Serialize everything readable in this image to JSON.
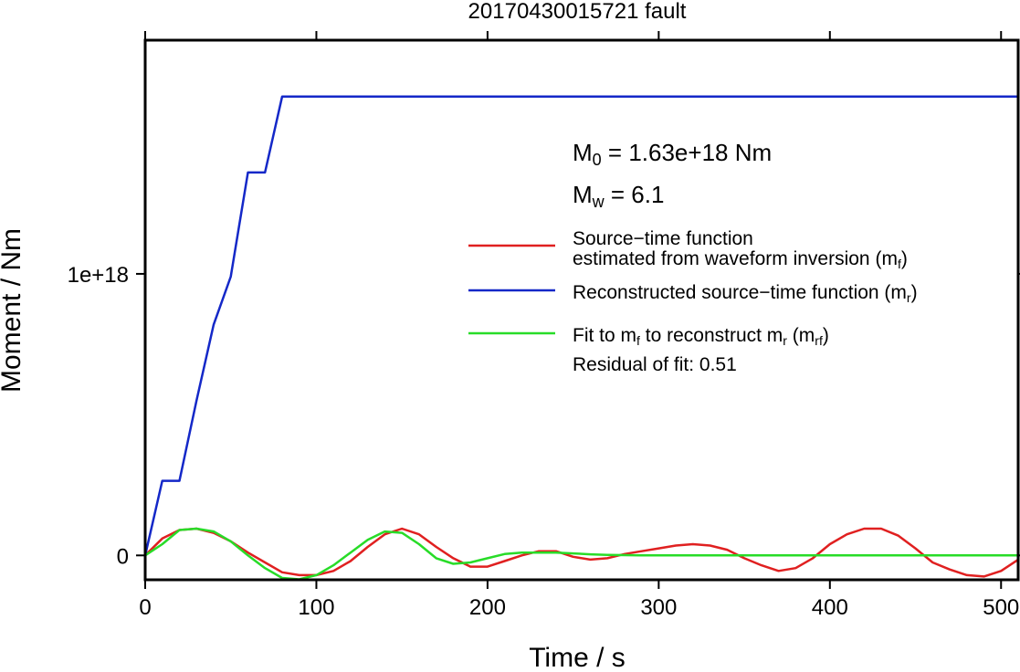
{
  "chart_data": {
    "type": "line",
    "title": "20170430015721 fault",
    "xlabel": "Time / s",
    "ylabel": "Moment / Nm",
    "xlim": [
      0,
      510
    ],
    "ylim": [
      -8.66e+16,
      1.83e+18
    ],
    "xticks": [
      0,
      100,
      200,
      300,
      400,
      500
    ],
    "xtick_labels": [
      "0",
      "100",
      "200",
      "300",
      "400",
      "500"
    ],
    "yticks": [
      0,
      1e+18
    ],
    "ytick_labels": [
      "0",
      "1e+18"
    ],
    "grid": false,
    "annotations": {
      "m0": {
        "prefix": "M",
        "sub": "0",
        "suffix": " = 1.63e+18 Nm"
      },
      "mw": {
        "prefix": "M",
        "sub": "w",
        "suffix": " = 6.1"
      },
      "residual": "Residual of fit: 0.51"
    },
    "series": [
      {
        "id": "mf",
        "color": "#e02020",
        "legend_lines": [
          [
            {
              "t": "Source−time function"
            }
          ],
          [
            {
              "t": "estimated from waveform inversion (m"
            },
            {
              "t": "f",
              "sub": true
            },
            {
              "t": ")"
            }
          ]
        ],
        "x": [
          0,
          10,
          20,
          30,
          40,
          50,
          60,
          70,
          80,
          90,
          100,
          110,
          120,
          130,
          140,
          150,
          160,
          170,
          180,
          190,
          200,
          210,
          220,
          230,
          240,
          250,
          260,
          270,
          280,
          290,
          300,
          310,
          320,
          330,
          340,
          350,
          360,
          370,
          380,
          390,
          400,
          410,
          420,
          430,
          440,
          450,
          460,
          470,
          480,
          490,
          500,
          510
        ],
        "y": [
          0,
          6e+16,
          9e+16,
          9.5e+16,
          8e+16,
          5e+16,
          1e+16,
          -2.5e+16,
          -6e+16,
          -7e+16,
          -7e+16,
          -5.5e+16,
          -2e+16,
          3e+16,
          7.5e+16,
          9.5e+16,
          7.5e+16,
          3e+16,
          -1e+16,
          -4e+16,
          -4e+16,
          -2e+16,
          0,
          1.5e+16,
          1.5e+16,
          -5000000000000000.0,
          -1.5e+16,
          -1e+16,
          5000000000000000.0,
          1.5e+16,
          2.5e+16,
          3.5e+16,
          4e+16,
          3.5e+16,
          2e+16,
          -1e+16,
          -3.5e+16,
          -5.5e+16,
          -4.5e+16,
          -1e+16,
          4e+16,
          7.5e+16,
          9.5e+16,
          9.5e+16,
          7e+16,
          2.5e+16,
          -2.5e+16,
          -5e+16,
          -7e+16,
          -7.5e+16,
          -5.5e+16,
          -1.5e+16
        ]
      },
      {
        "id": "mr",
        "color": "#1428c8",
        "legend_lines": [
          [
            {
              "t": "Reconstructed source−time function (m"
            },
            {
              "t": "r",
              "sub": true
            },
            {
              "t": ")"
            }
          ]
        ],
        "x": [
          0,
          10,
          20,
          30,
          40,
          50,
          60,
          70,
          80,
          510
        ],
        "y": [
          0,
          2.65e+17,
          2.65e+17,
          5.5e+17,
          8.2e+17,
          9.9e+17,
          1.36e+18,
          1.36e+18,
          1.63e+18,
          1.63e+18
        ]
      },
      {
        "id": "mrf",
        "color": "#28dc28",
        "legend_lines": [
          [
            {
              "t": "Fit to m"
            },
            {
              "t": "f",
              "sub": true
            },
            {
              "t": " to reconstruct m"
            },
            {
              "t": "r",
              "sub": true
            },
            {
              "t": " (m"
            },
            {
              "t": "rf",
              "sub": true
            },
            {
              "t": ")"
            }
          ]
        ],
        "x": [
          0,
          10,
          20,
          30,
          40,
          50,
          60,
          70,
          80,
          90,
          100,
          110,
          120,
          130,
          140,
          150,
          160,
          170,
          180,
          190,
          200,
          210,
          220,
          230,
          240,
          250,
          260,
          270,
          280,
          290,
          300,
          320,
          340,
          360,
          400,
          450,
          510
        ],
        "y": [
          0,
          4e+16,
          9e+16,
          9.5e+16,
          8.5e+16,
          5e+16,
          0,
          -4.5e+16,
          -8e+16,
          -8.5e+16,
          -7e+16,
          -3.5e+16,
          1e+16,
          5.5e+16,
          8.5e+16,
          8e+16,
          4e+16,
          -1e+16,
          -3e+16,
          -2.5e+16,
          -1e+16,
          5000000000000000.0,
          1e+16,
          1e+16,
          1e+16,
          7000000000000000.0,
          4000000000000000.0,
          2000000000000000.0,
          1000000000000000.0,
          0,
          0,
          0,
          0,
          0,
          0,
          0,
          0
        ]
      }
    ]
  }
}
